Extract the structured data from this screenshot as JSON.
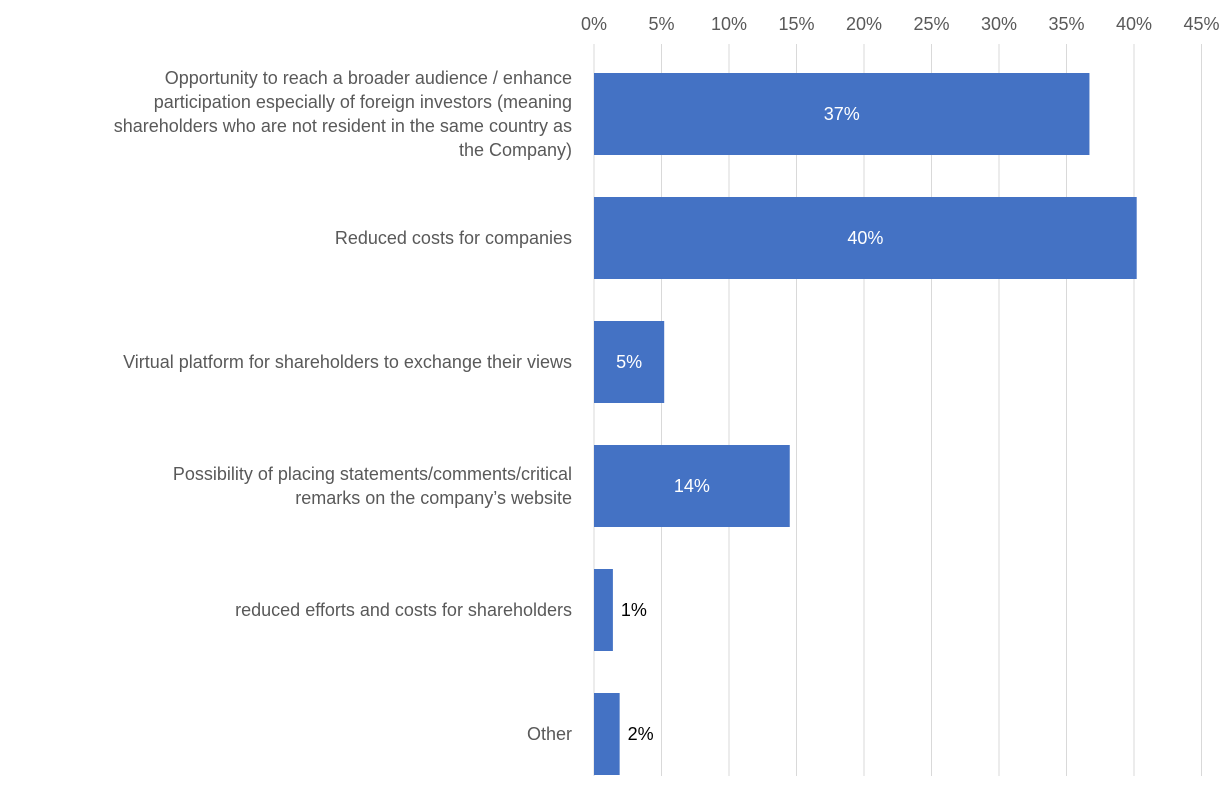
{
  "chart_data": {
    "type": "bar",
    "orientation": "horizontal",
    "categories": [
      "Opportunity to reach a broader audience / enhance participation especially of foreign investors (meaning shareholders who are not resident in the same country as the Company)",
      "Reduced costs for companies",
      "Virtual platform for shareholders to exchange their views",
      "Possibility of placing statements/comments/critical remarks on the company’s website",
      "reduced efforts and costs for shareholders",
      "Other"
    ],
    "category_lines": [
      [
        "Opportunity to reach a broader audience / enhance",
        "participation especially of foreign investors (meaning",
        "shareholders who are not resident in the same country as",
        "the Company)"
      ],
      [
        "Reduced costs for companies"
      ],
      [
        "Virtual platform for shareholders to exchange their views"
      ],
      [
        "Possibility of placing statements/comments/critical",
        "remarks on the company’s website"
      ],
      [
        "reduced efforts and costs for shareholders"
      ],
      [
        "Other"
      ]
    ],
    "values": [
      37,
      40,
      5,
      14,
      1,
      2
    ],
    "plotted_values": [
      36.7,
      40.2,
      5.2,
      14.5,
      1.4,
      1.9
    ],
    "data_labels": [
      "37%",
      "40%",
      "5%",
      "14%",
      "1%",
      "2%"
    ],
    "xlim": [
      0,
      45
    ],
    "x_ticks": [
      "0%",
      "5%",
      "10%",
      "15%",
      "20%",
      "25%",
      "30%",
      "35%",
      "40%",
      "45%"
    ],
    "x_axis_position": "top",
    "grid": true,
    "legend": "none",
    "title": "",
    "xlabel": "",
    "ylabel": "",
    "colors": {
      "bar": "#4472C4",
      "grid": "#D9D9D9",
      "text": "#595959",
      "label_inside": "#FFFFFF",
      "label_outside": "#000000"
    }
  }
}
